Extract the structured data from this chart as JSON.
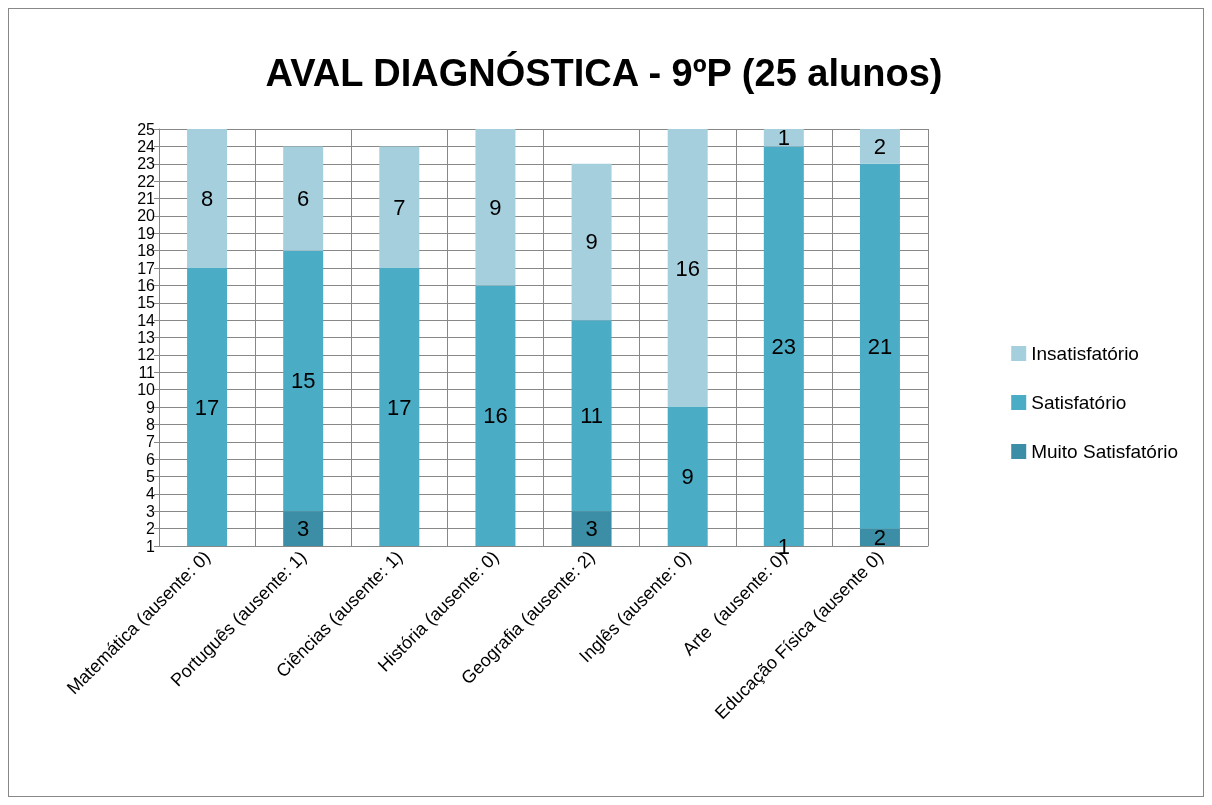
{
  "chart_data": {
    "type": "bar",
    "title": "AVAL DIAGNÓSTICA - 9ºP (25 alunos)",
    "stacked": true,
    "categories": [
      "Matemática (ausente: 0)",
      "Português (ausente: 1)",
      "Ciências (ausente: 1)",
      "História (ausente: 0)",
      "Geografia (ausente: 2)",
      "Inglês (ausente: 0)",
      "Arte  (ausente: 0)",
      "Educação Física (ausente 0)"
    ],
    "series": [
      {
        "name": "Muito Satisfatório",
        "color": "#3b8ea5",
        "values": [
          null,
          3,
          null,
          null,
          3,
          null,
          1,
          2
        ],
        "value_labels": [
          null,
          "3",
          null,
          null,
          "3",
          null,
          "1",
          "2"
        ]
      },
      {
        "name": "Satisfatório",
        "color": "#4bacc6",
        "values": [
          17,
          15,
          17,
          16,
          11,
          9,
          23,
          21
        ],
        "value_labels": [
          "17",
          "15",
          "17",
          "16",
          "11",
          "9",
          "23",
          "21"
        ]
      },
      {
        "name": "Insatisfatório",
        "color": "#a5cfdc",
        "values": [
          8,
          6,
          7,
          9,
          9,
          16,
          1,
          2
        ],
        "value_labels": [
          "8",
          "6",
          "7",
          "9",
          "9",
          "16",
          "1",
          "2"
        ]
      }
    ],
    "ylim": [
      1,
      25
    ],
    "yticks": [
      1,
      2,
      3,
      4,
      5,
      6,
      7,
      8,
      9,
      10,
      11,
      12,
      13,
      14,
      15,
      16,
      17,
      18,
      19,
      20,
      21,
      22,
      23,
      24,
      25
    ],
    "grid": true,
    "legend": "right"
  }
}
